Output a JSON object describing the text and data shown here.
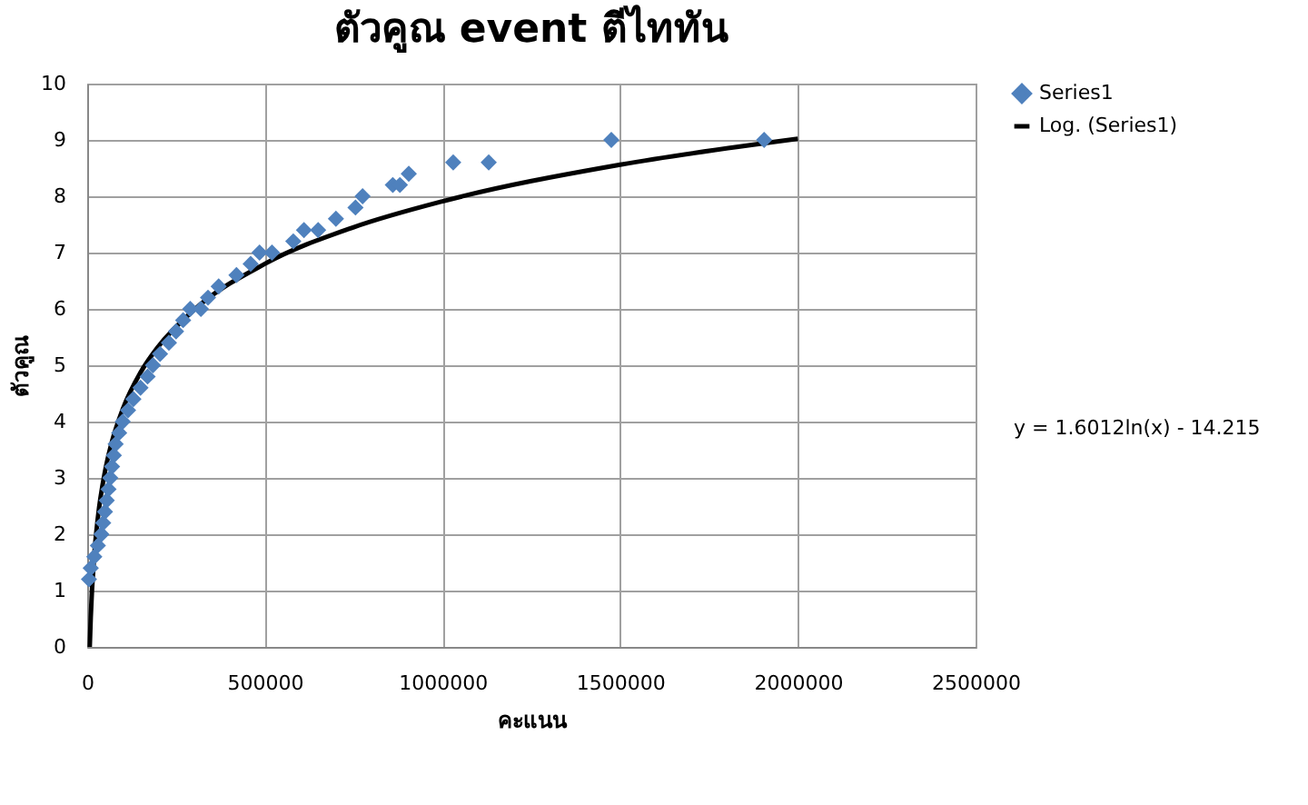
{
  "chart_data": {
    "type": "scatter",
    "title": "ตัวคูณ event ตีไททัน",
    "xlabel": "คะแนน",
    "ylabel": "ตัวคูณ",
    "xlim": [
      0,
      2500000
    ],
    "xticks": [
      0,
      500000,
      1000000,
      1500000,
      2000000,
      2500000
    ],
    "ylim": [
      0,
      10
    ],
    "yticks": [
      0,
      1,
      2,
      3,
      4,
      5,
      6,
      7,
      8,
      9,
      10
    ],
    "grid": true,
    "legend": "right",
    "marker": "diamond",
    "annotations": [
      "y = 1.6012ln(x) - 14.215"
    ],
    "series": [
      {
        "name": "Series1",
        "color": "#4f81bd",
        "x": [
          5000,
          10000,
          20000,
          30000,
          40000,
          45000,
          50000,
          55000,
          60000,
          65000,
          70000,
          75000,
          80000,
          90000,
          100000,
          115000,
          130000,
          150000,
          170000,
          185000,
          205000,
          230000,
          250000,
          270000,
          290000,
          320000,
          340000,
          370000,
          420000,
          460000,
          485000,
          520000,
          580000,
          610000,
          650000,
          700000,
          755000,
          775000,
          860000,
          880000,
          905000,
          1030000,
          1130000,
          1475000,
          1905000
        ],
        "values": [
          1.2,
          1.4,
          1.6,
          1.8,
          2.0,
          2.2,
          2.4,
          2.6,
          2.8,
          3.0,
          3.2,
          3.4,
          3.6,
          3.8,
          4.0,
          4.2,
          4.4,
          4.6,
          4.8,
          5.0,
          5.2,
          5.4,
          5.6,
          5.8,
          6.0,
          6.0,
          6.2,
          6.4,
          6.6,
          6.8,
          7.0,
          7.0,
          7.2,
          7.4,
          7.4,
          7.6,
          7.8,
          8.0,
          8.2,
          8.2,
          8.4,
          8.6,
          8.6,
          9.0,
          9.0
        ]
      },
      {
        "name": "Log. (Series1)",
        "type": "line",
        "color": "#000000",
        "line_style": "solid",
        "marker": "none",
        "x": [
          7200,
          10000,
          20000,
          30000,
          50000,
          70000,
          100000,
          150000,
          200000,
          300000,
          500000,
          750000,
          1000000,
          1500000,
          2000000
        ],
        "values": [
          0.0,
          0.53,
          1.64,
          2.29,
          3.11,
          3.65,
          4.22,
          4.87,
          5.33,
          5.98,
          6.8,
          7.45,
          7.91,
          8.56,
          9.02
        ]
      }
    ]
  }
}
